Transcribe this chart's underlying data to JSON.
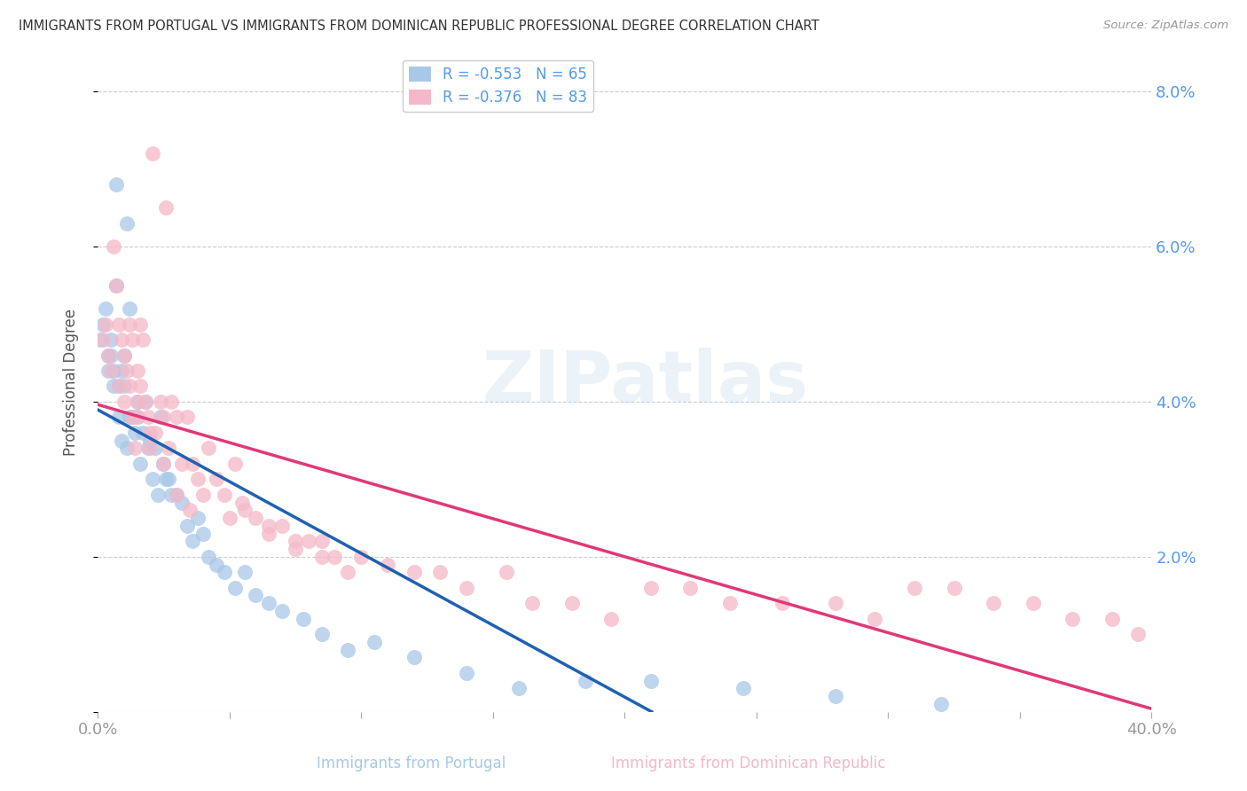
{
  "title": "IMMIGRANTS FROM PORTUGAL VS IMMIGRANTS FROM DOMINICAN REPUBLIC PROFESSIONAL DEGREE CORRELATION CHART",
  "source": "Source: ZipAtlas.com",
  "xlabel_portugal": "Immigrants from Portugal",
  "xlabel_dr": "Immigrants from Dominican Republic",
  "ylabel": "Professional Degree",
  "xlim": [
    0.0,
    0.4
  ],
  "ylim": [
    0.0,
    0.085
  ],
  "ytick_vals": [
    0.0,
    0.02,
    0.04,
    0.06,
    0.08
  ],
  "ytick_labels": [
    "",
    "2.0%",
    "4.0%",
    "6.0%",
    "8.0%"
  ],
  "xtick_vals": [
    0.0,
    0.05,
    0.1,
    0.15,
    0.2,
    0.25,
    0.3,
    0.35,
    0.4
  ],
  "xtick_labels": [
    "0.0%",
    "",
    "",
    "",
    "",
    "",
    "",
    "",
    "40.0%"
  ],
  "color_portugal": "#a8c8e8",
  "color_dr": "#f5b8c8",
  "line_color_portugal": "#2060b0",
  "line_color_dr": "#e03878",
  "R_portugal": -0.553,
  "N_portugal": 65,
  "R_dr": -0.376,
  "N_dr": 83,
  "background_color": "#ffffff",
  "watermark": "ZIPatlas",
  "portugal_x": [
    0.001,
    0.002,
    0.003,
    0.004,
    0.004,
    0.005,
    0.005,
    0.006,
    0.006,
    0.007,
    0.007,
    0.008,
    0.008,
    0.009,
    0.009,
    0.01,
    0.01,
    0.011,
    0.011,
    0.012,
    0.012,
    0.013,
    0.013,
    0.014,
    0.015,
    0.015,
    0.016,
    0.017,
    0.018,
    0.019,
    0.02,
    0.021,
    0.022,
    0.023,
    0.024,
    0.025,
    0.026,
    0.027,
    0.028,
    0.03,
    0.032,
    0.034,
    0.036,
    0.038,
    0.04,
    0.042,
    0.045,
    0.048,
    0.052,
    0.056,
    0.06,
    0.065,
    0.07,
    0.078,
    0.085,
    0.095,
    0.105,
    0.12,
    0.14,
    0.16,
    0.185,
    0.21,
    0.245,
    0.28,
    0.32
  ],
  "portugal_y": [
    0.048,
    0.05,
    0.052,
    0.046,
    0.044,
    0.048,
    0.046,
    0.044,
    0.042,
    0.068,
    0.055,
    0.042,
    0.038,
    0.044,
    0.035,
    0.046,
    0.042,
    0.034,
    0.063,
    0.038,
    0.052,
    0.038,
    0.038,
    0.036,
    0.04,
    0.038,
    0.032,
    0.036,
    0.04,
    0.034,
    0.035,
    0.03,
    0.034,
    0.028,
    0.038,
    0.032,
    0.03,
    0.03,
    0.028,
    0.028,
    0.027,
    0.024,
    0.022,
    0.025,
    0.023,
    0.02,
    0.019,
    0.018,
    0.016,
    0.018,
    0.015,
    0.014,
    0.013,
    0.012,
    0.01,
    0.008,
    0.009,
    0.007,
    0.005,
    0.003,
    0.004,
    0.004,
    0.003,
    0.002,
    0.001
  ],
  "dr_x": [
    0.002,
    0.003,
    0.004,
    0.005,
    0.006,
    0.007,
    0.008,
    0.008,
    0.009,
    0.01,
    0.01,
    0.011,
    0.012,
    0.012,
    0.013,
    0.013,
    0.014,
    0.015,
    0.015,
    0.016,
    0.017,
    0.018,
    0.019,
    0.02,
    0.021,
    0.022,
    0.024,
    0.025,
    0.026,
    0.027,
    0.028,
    0.03,
    0.032,
    0.034,
    0.036,
    0.038,
    0.04,
    0.042,
    0.045,
    0.048,
    0.052,
    0.056,
    0.06,
    0.065,
    0.07,
    0.075,
    0.08,
    0.085,
    0.09,
    0.095,
    0.1,
    0.11,
    0.12,
    0.13,
    0.14,
    0.155,
    0.165,
    0.18,
    0.195,
    0.21,
    0.225,
    0.24,
    0.26,
    0.28,
    0.295,
    0.31,
    0.325,
    0.34,
    0.355,
    0.37,
    0.385,
    0.395,
    0.05,
    0.055,
    0.065,
    0.075,
    0.085,
    0.02,
    0.025,
    0.03,
    0.035,
    0.015,
    0.016
  ],
  "dr_y": [
    0.048,
    0.05,
    0.046,
    0.044,
    0.06,
    0.055,
    0.042,
    0.05,
    0.048,
    0.046,
    0.04,
    0.044,
    0.042,
    0.05,
    0.048,
    0.038,
    0.034,
    0.04,
    0.038,
    0.05,
    0.048,
    0.04,
    0.038,
    0.034,
    0.072,
    0.036,
    0.04,
    0.038,
    0.065,
    0.034,
    0.04,
    0.038,
    0.032,
    0.038,
    0.032,
    0.03,
    0.028,
    0.034,
    0.03,
    0.028,
    0.032,
    0.026,
    0.025,
    0.024,
    0.024,
    0.022,
    0.022,
    0.022,
    0.02,
    0.018,
    0.02,
    0.019,
    0.018,
    0.018,
    0.016,
    0.018,
    0.014,
    0.014,
    0.012,
    0.016,
    0.016,
    0.014,
    0.014,
    0.014,
    0.012,
    0.016,
    0.016,
    0.014,
    0.014,
    0.012,
    0.012,
    0.01,
    0.025,
    0.027,
    0.023,
    0.021,
    0.02,
    0.036,
    0.032,
    0.028,
    0.026,
    0.044,
    0.042
  ]
}
